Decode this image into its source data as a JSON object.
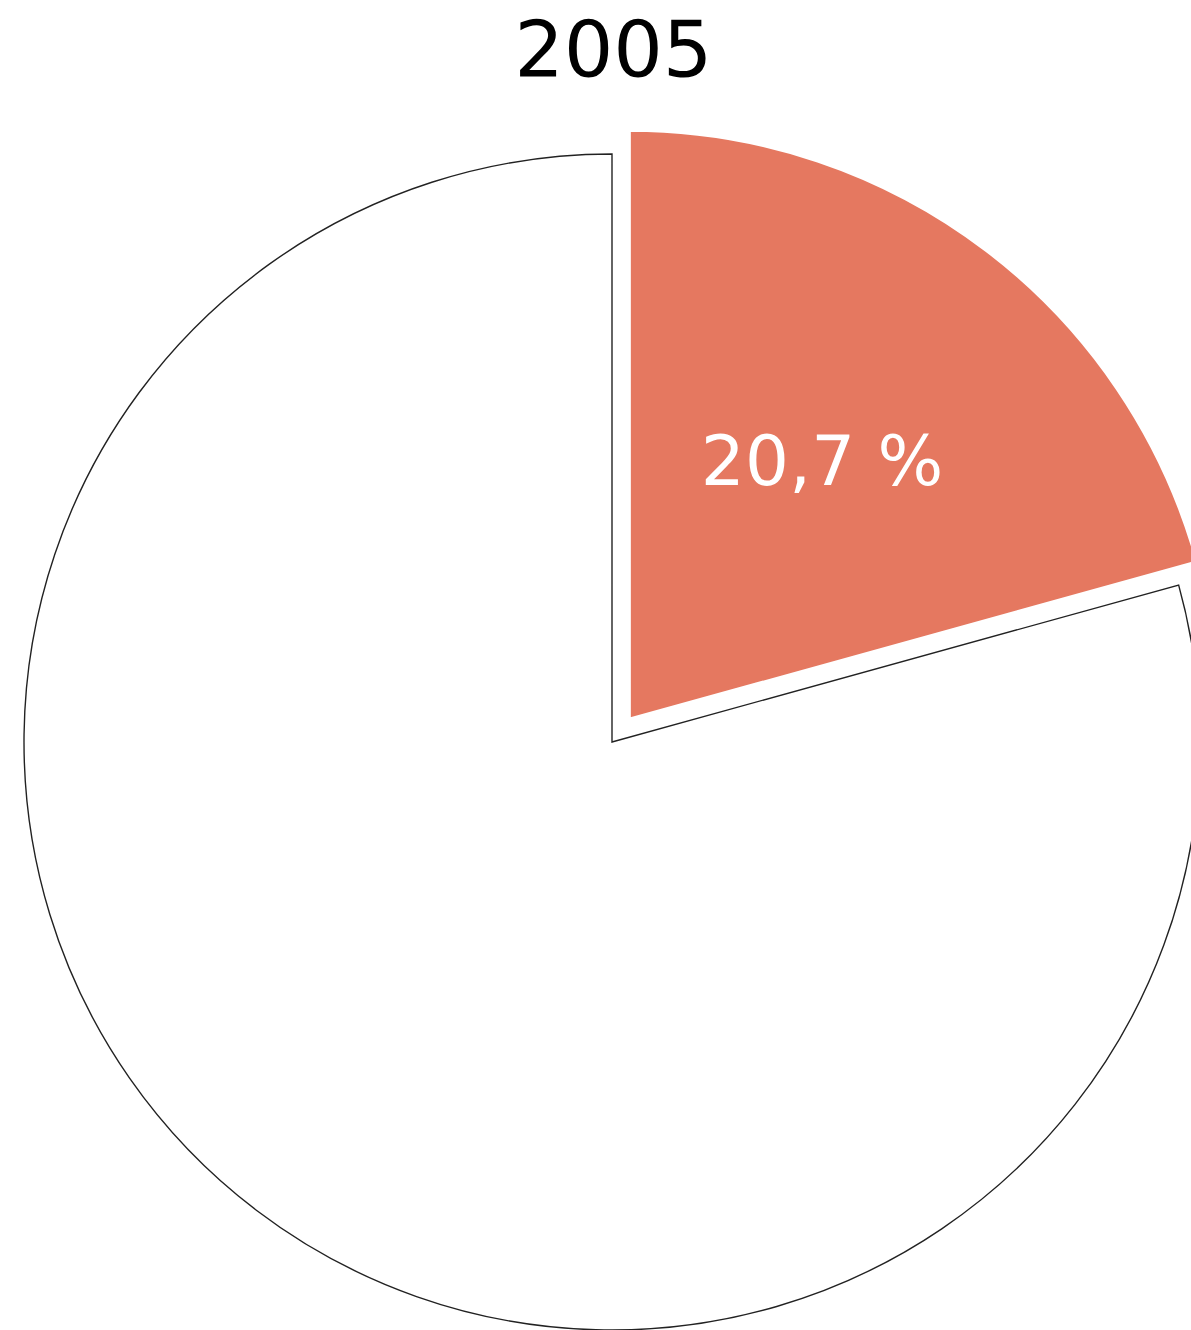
{
  "chart_data": {
    "type": "pie",
    "title": "2005",
    "categories": [
      null,
      null
    ],
    "values": [
      20.7,
      79.3
    ],
    "colors": [
      "#e57860",
      "#ffffff"
    ],
    "value_labels": [
      "20,7 %",
      null
    ]
  }
}
